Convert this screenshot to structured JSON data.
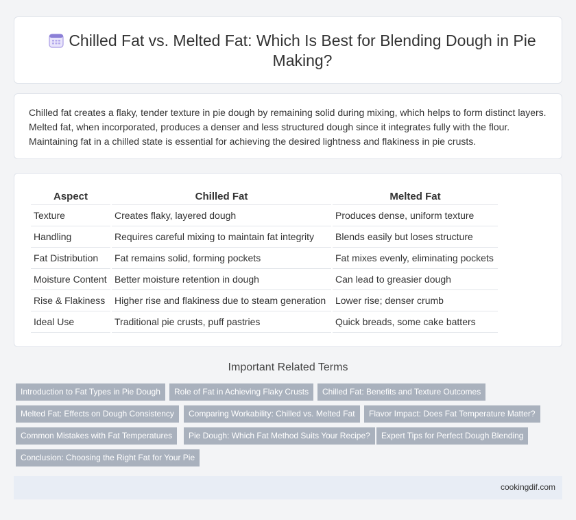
{
  "header": {
    "title": "Chilled Fat vs. Melted Fat: Which Is Best for Blending Dough in Pie Making?",
    "icon": "calendar-icon"
  },
  "intro": {
    "text": "Chilled fat creates a flaky, tender texture in pie dough by remaining solid during mixing, which helps to form distinct layers. Melted fat, when incorporated, produces a denser and less structured dough since it integrates fully with the flour. Maintaining fat in a chilled state is essential for achieving the desired lightness and flakiness in pie crusts."
  },
  "table": {
    "headers": [
      "Aspect",
      "Chilled Fat",
      "Melted Fat"
    ],
    "rows": [
      [
        "Texture",
        "Creates flaky, layered dough",
        "Produces dense, uniform texture"
      ],
      [
        "Handling",
        "Requires careful mixing to maintain fat integrity",
        "Blends easily but loses structure"
      ],
      [
        "Fat Distribution",
        "Fat remains solid, forming pockets",
        "Fat mixes evenly, eliminating pockets"
      ],
      [
        "Moisture Content",
        "Better moisture retention in dough",
        "Can lead to greasier dough"
      ],
      [
        "Rise & Flakiness",
        "Higher rise and flakiness due to steam generation",
        "Lower rise; denser crumb"
      ],
      [
        "Ideal Use",
        "Traditional pie crusts, puff pastries",
        "Quick breads, some cake batters"
      ]
    ]
  },
  "related": {
    "title": "Important Related Terms",
    "tags": [
      "Introduction to Fat Types in Pie Dough",
      "Role of Fat in Achieving Flaky Crusts",
      "Chilled Fat: Benefits and Texture Outcomes",
      "Melted Fat: Effects on Dough Consistency",
      "Comparing Workability: Chilled vs. Melted Fat",
      "Flavor Impact: Does Fat Temperature Matter?",
      "Common Mistakes with Fat Temperatures",
      "Pie Dough: Which Fat Method Suits Your Recipe?",
      "Expert Tips for Perfect Dough Blending",
      "Conclusion: Choosing the Right Fat for Your Pie"
    ]
  },
  "footer": {
    "site": "cookingdif.com"
  },
  "colors": {
    "tag_bg": "#a9b1bd",
    "icon_purple": "#8b7fd6",
    "page_bg": "#f3f4f6"
  }
}
